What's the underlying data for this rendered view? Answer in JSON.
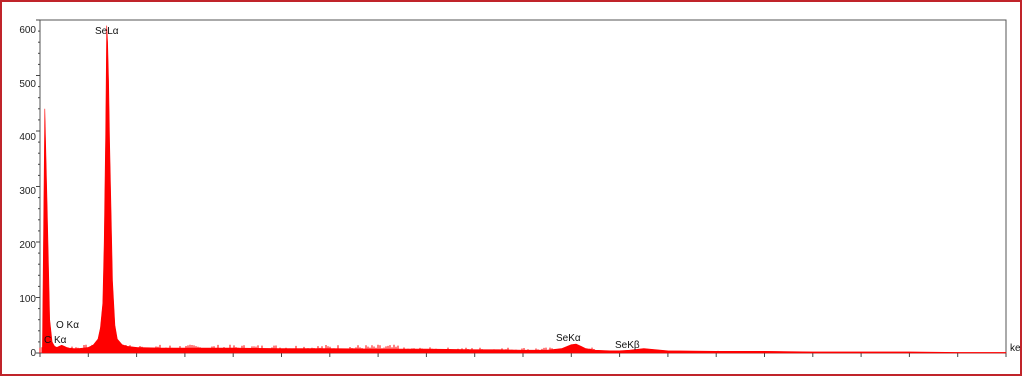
{
  "chart_data": {
    "type": "line",
    "title": "",
    "xlabel": "ke",
    "ylabel": "",
    "ylim": [
      0,
      600
    ],
    "xlim": [
      0,
      20
    ],
    "y_ticks": [
      "0",
      "100",
      "200",
      "300",
      "400",
      "500",
      "600"
    ],
    "series": [
      {
        "color": "#ff0000",
        "x": [
          0.05,
          0.1,
          0.15,
          0.2,
          0.25,
          0.3,
          0.35,
          0.4,
          0.45,
          0.5,
          0.55,
          0.6,
          0.7,
          0.8,
          0.9,
          1.0,
          1.1,
          1.2,
          1.25,
          1.3,
          1.33,
          1.36,
          1.38,
          1.4,
          1.42,
          1.44,
          1.47,
          1.5,
          1.55,
          1.6,
          1.7,
          1.8,
          2.0,
          2.5,
          3,
          4,
          5,
          6,
          7,
          8,
          9,
          9.5,
          10,
          10.5,
          10.8,
          11.0,
          11.1,
          11.2,
          11.3,
          11.5,
          11.8,
          12.0,
          12.2,
          12.5,
          13.0,
          14,
          15,
          16,
          17,
          18,
          19,
          20
        ],
        "y": [
          5,
          440,
          260,
          60,
          20,
          12,
          10,
          12,
          14,
          12,
          10,
          9,
          8,
          8,
          9,
          10,
          14,
          25,
          45,
          90,
          200,
          400,
          590,
          560,
          490,
          380,
          260,
          130,
          50,
          25,
          15,
          12,
          10,
          9,
          9,
          9,
          8,
          8,
          7,
          7,
          6,
          6,
          5,
          5,
          8,
          15,
          16,
          12,
          8,
          5,
          4,
          4,
          5,
          8,
          4,
          3,
          3,
          2,
          2,
          2,
          1,
          1
        ]
      }
    ],
    "annotations": [
      "SeLα",
      "O Kα",
      "C Kα",
      "SeKα",
      "SeKβ"
    ]
  }
}
